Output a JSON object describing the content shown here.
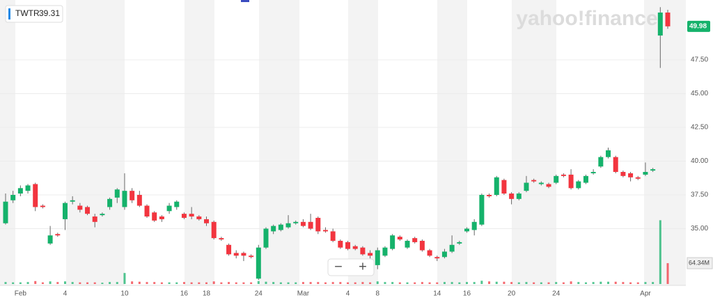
{
  "chart_data": {
    "type": "candlestick",
    "ticker": "TWTR",
    "last_price": 39.31,
    "watermark": "yahoo!finance",
    "current_price": 49.98,
    "zoom_out": "−",
    "zoom_in": "+",
    "up_color": "#15b26b",
    "down_color": "#f2353f",
    "categories": [
      null,
      null,
      "Feb",
      null,
      null,
      null,
      null,
      null,
      "4",
      null,
      null,
      null,
      null,
      null,
      null,
      null,
      "10",
      null,
      null,
      null,
      null,
      null,
      null,
      null,
      "16",
      null,
      null,
      "18",
      null,
      null,
      null,
      null,
      null,
      null,
      "24",
      null,
      null,
      null,
      null,
      null,
      "Mar",
      null,
      null,
      null,
      null,
      null,
      "4",
      null,
      null,
      null,
      "8",
      null,
      null,
      null,
      null,
      null,
      null,
      null,
      "14",
      null,
      null,
      null,
      "16",
      null,
      null,
      null,
      null,
      null,
      "20",
      null,
      null,
      null,
      null,
      null,
      "24",
      null,
      null,
      null,
      null,
      null,
      null,
      null,
      null,
      null,
      null,
      null,
      "Apr",
      null,
      null,
      null
    ],
    "open": [
      35.4,
      37.1,
      37.6,
      37.8,
      38.3,
      36.7,
      33.9,
      34.6,
      35.7,
      37.0,
      36.7,
      36.6,
      35.9,
      36.0,
      36.6,
      37.3,
      36.6,
      37.8,
      37.5,
      36.7,
      36.2,
      35.9,
      36.3,
      36.6,
      36.1,
      36.1,
      35.9,
      35.7,
      35.5,
      34.3,
      33.8,
      33.2,
      33.2,
      33.0,
      31.3,
      33.6,
      34.8,
      34.9,
      35.1,
      35.4,
      35.5,
      35.5,
      35.8,
      34.9,
      34.8,
      34.1,
      34.0,
      33.7,
      33.6,
      33.2,
      32.3,
      33.0,
      33.5,
      34.4,
      33.6,
      34.3,
      34.1,
      33.4,
      32.9,
      32.9,
      33.3,
      33.9,
      34.8,
      34.9,
      35.3,
      37.5,
      37.5,
      38.6,
      37.6,
      37.2,
      37.8,
      38.6,
      38.3,
      38.3,
      38.4,
      39.0,
      39.0,
      38.0,
      38.4,
      39.1,
      39.6,
      40.3,
      40.3,
      39.2,
      39.1,
      38.8,
      39.0,
      39.3,
      49.3,
      51.0
    ],
    "high": [
      37.6,
      37.8,
      38.2,
      38.3,
      38.4,
      36.8,
      35.2,
      34.7,
      37.0,
      37.4,
      36.9,
      36.7,
      36.1,
      36.2,
      37.3,
      38.0,
      39.1,
      38.0,
      37.8,
      36.8,
      36.3,
      36.0,
      36.9,
      37.1,
      36.2,
      36.6,
      36.0,
      35.9,
      35.6,
      34.4,
      33.9,
      33.4,
      33.3,
      33.1,
      33.8,
      35.1,
      35.3,
      35.4,
      36.0,
      35.6,
      35.7,
      36.1,
      35.9,
      35.1,
      35.0,
      34.2,
      34.1,
      33.8,
      33.7,
      33.4,
      33.6,
      33.7,
      34.6,
      34.5,
      34.2,
      34.4,
      34.2,
      33.5,
      33.0,
      33.5,
      34.5,
      34.1,
      35.1,
      35.7,
      37.6,
      37.6,
      38.9,
      38.7,
      37.7,
      37.7,
      38.9,
      38.7,
      38.5,
      38.4,
      39.0,
      39.1,
      39.4,
      38.6,
      39.0,
      39.4,
      40.4,
      41.0,
      40.4,
      39.3,
      39.2,
      38.9,
      39.9,
      39.5,
      51.4,
      51.2
    ],
    "low": [
      35.3,
      36.9,
      37.4,
      37.6,
      36.3,
      36.5,
      33.8,
      34.4,
      34.9,
      36.8,
      36.2,
      36.0,
      35.1,
      35.9,
      36.4,
      36.9,
      36.4,
      36.9,
      36.6,
      35.8,
      35.5,
      35.5,
      36.1,
      36.4,
      35.7,
      35.7,
      35.6,
      35.2,
      34.2,
      34.1,
      33.0,
      32.8,
      32.6,
      32.8,
      31.2,
      33.5,
      34.6,
      34.8,
      35.0,
      35.3,
      35.1,
      34.9,
      34.6,
      34.7,
      34.0,
      33.5,
      33.4,
      33.4,
      33.0,
      32.8,
      32.0,
      32.9,
      33.4,
      34.1,
      33.5,
      33.9,
      33.3,
      32.9,
      32.6,
      32.8,
      33.2,
      33.8,
      34.7,
      34.5,
      35.2,
      37.3,
      37.4,
      37.5,
      36.8,
      37.1,
      37.7,
      38.4,
      38.2,
      38.0,
      38.3,
      38.8,
      37.9,
      37.9,
      38.3,
      39.0,
      39.5,
      40.2,
      39.1,
      38.8,
      38.5,
      38.6,
      38.9,
      39.2,
      46.9,
      49.8
    ],
    "close": [
      37.0,
      37.5,
      38.0,
      38.2,
      36.6,
      36.6,
      34.5,
      34.5,
      36.9,
      37.1,
      36.4,
      36.1,
      35.5,
      36.1,
      37.2,
      37.9,
      37.8,
      37.1,
      36.7,
      35.9,
      35.6,
      35.7,
      36.7,
      37.0,
      35.8,
      35.9,
      35.7,
      35.4,
      34.3,
      34.2,
      33.1,
      33.0,
      33.0,
      32.9,
      33.6,
      35.0,
      35.2,
      35.3,
      35.4,
      35.5,
      35.2,
      35.0,
      34.8,
      34.8,
      34.1,
      33.6,
      33.5,
      33.5,
      33.1,
      33.0,
      33.4,
      33.6,
      34.5,
      34.2,
      34.1,
      34.0,
      33.4,
      33.0,
      32.8,
      33.3,
      33.8,
      34.0,
      35.0,
      35.5,
      37.5,
      37.4,
      38.8,
      37.6,
      37.2,
      37.6,
      38.4,
      38.5,
      38.4,
      38.1,
      38.9,
      38.9,
      38.0,
      38.5,
      38.9,
      39.2,
      40.3,
      40.8,
      39.2,
      38.9,
      38.8,
      38.7,
      39.2,
      39.4,
      51.0,
      49.98
    ],
    "volume": [
      6,
      5,
      5,
      6,
      9,
      5,
      8,
      6,
      8,
      6,
      5,
      5,
      5,
      4,
      6,
      6,
      34,
      8,
      7,
      6,
      6,
      5,
      5,
      5,
      6,
      5,
      5,
      5,
      8,
      5,
      6,
      5,
      5,
      5,
      9,
      7,
      6,
      5,
      5,
      5,
      6,
      6,
      6,
      5,
      6,
      6,
      5,
      5,
      6,
      5,
      8,
      6,
      6,
      5,
      5,
      5,
      6,
      5,
      5,
      6,
      6,
      5,
      6,
      6,
      10,
      8,
      7,
      7,
      6,
      5,
      6,
      5,
      5,
      5,
      6,
      5,
      8,
      6,
      5,
      6,
      7,
      7,
      7,
      6,
      5,
      5,
      6,
      6,
      197,
      64.34
    ],
    "volume_label": {
      "value": 64.34,
      "label": "64.34M"
    },
    "volume_ylim": [
      0,
      200
    ],
    "ylim": [
      30.8,
      51.93
    ],
    "yticks": [
      {
        "value": 35,
        "label": "35.00"
      },
      {
        "value": 37.5,
        "label": "37.50"
      },
      {
        "value": 40,
        "label": "40.00"
      },
      {
        "value": 42.5,
        "label": "42.50"
      },
      {
        "value": 45,
        "label": "45.00"
      },
      {
        "value": 47.5,
        "label": "47.50"
      }
    ],
    "grid": true
  }
}
